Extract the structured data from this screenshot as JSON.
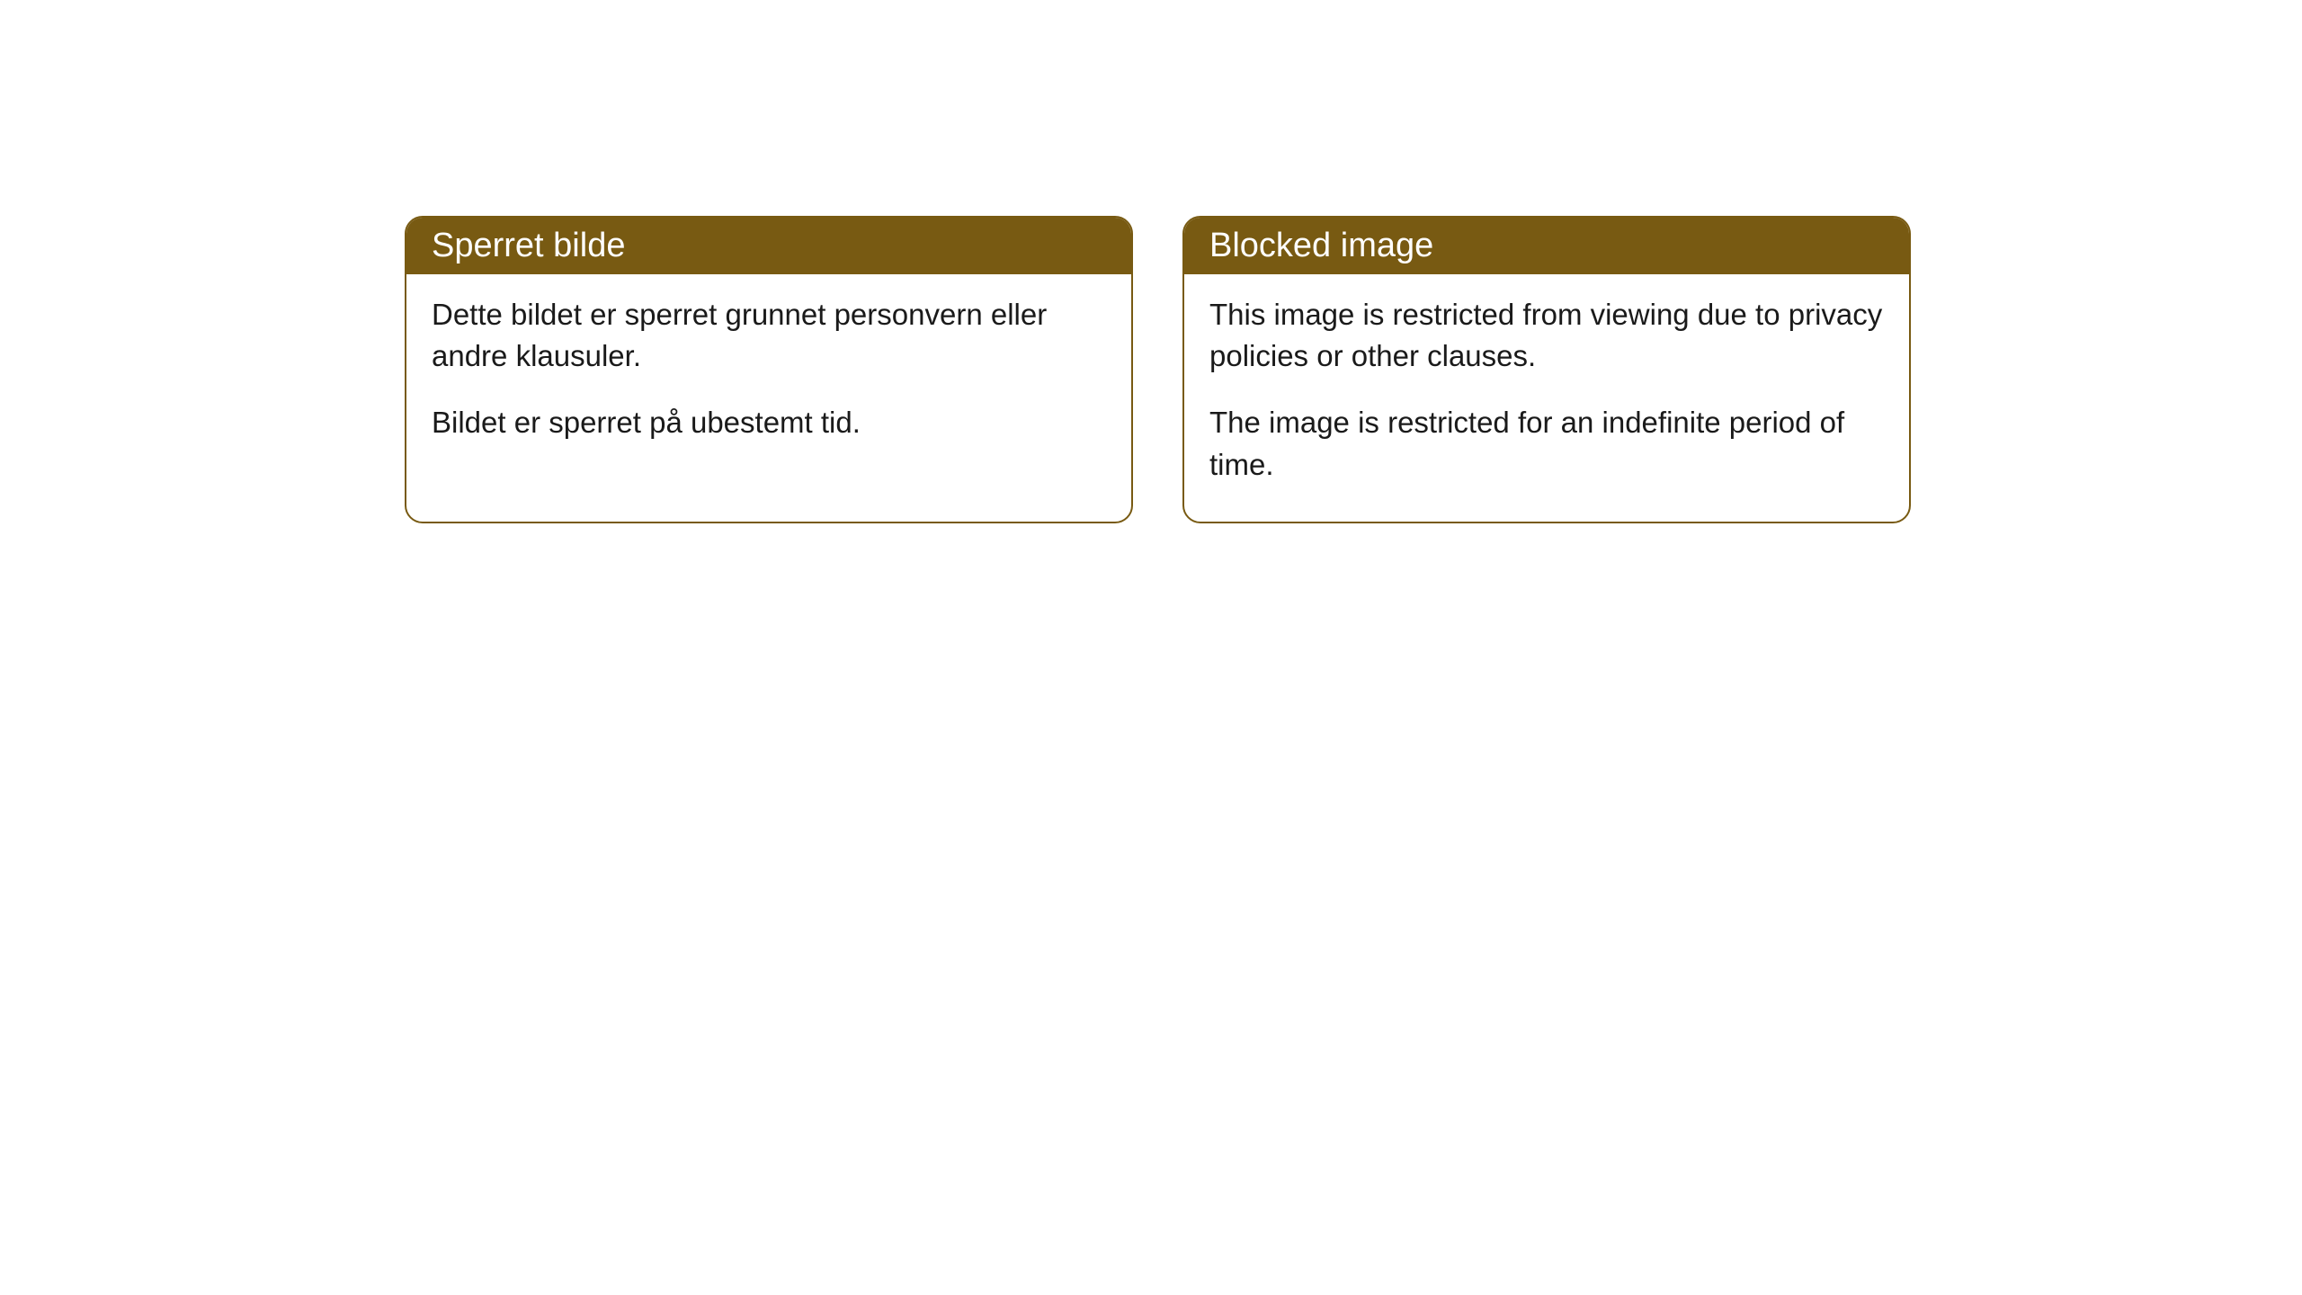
{
  "cards": [
    {
      "title": "Sperret bilde",
      "paragraph1": "Dette bildet er sperret grunnet personvern eller andre klausuler.",
      "paragraph2": "Bildet er sperret på ubestemt tid."
    },
    {
      "title": "Blocked image",
      "paragraph1": "This image is restricted from viewing due to privacy policies or other clauses.",
      "paragraph2": "The image is restricted for an indefinite period of time."
    }
  ],
  "styling": {
    "header_bg_color": "#785a12",
    "header_text_color": "#ffffff",
    "border_color": "#785a12",
    "body_bg_color": "#ffffff",
    "body_text_color": "#1a1a1a",
    "border_radius": 20,
    "title_fontsize": 38,
    "body_fontsize": 33
  }
}
